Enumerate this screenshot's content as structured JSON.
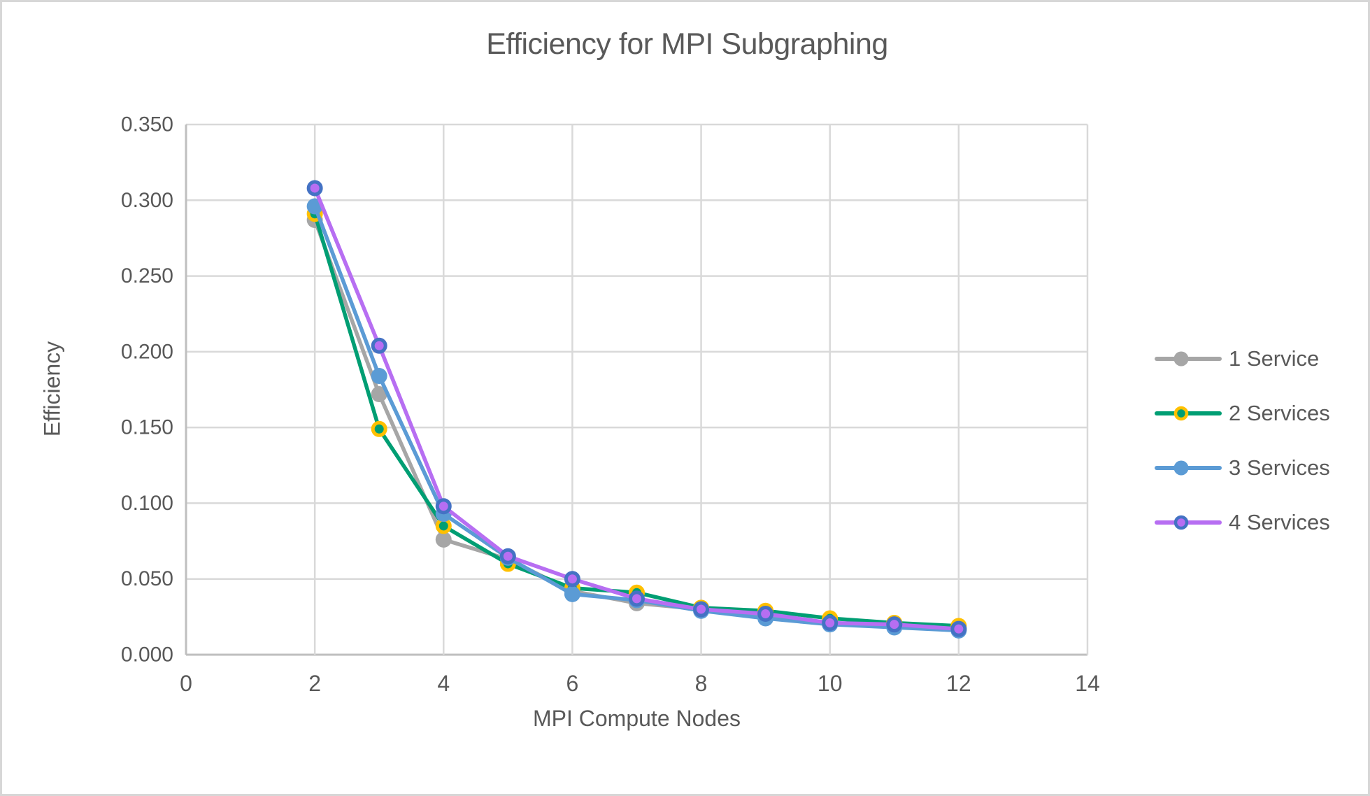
{
  "chart_data": {
    "type": "line",
    "title": "Efficiency for MPI Subgraphing",
    "xlabel": "MPI Compute Nodes",
    "ylabel": "Efficiency",
    "xlim": [
      0,
      14
    ],
    "ylim": [
      0.0,
      0.35
    ],
    "x_ticks": [
      0,
      2,
      4,
      6,
      8,
      10,
      12,
      14
    ],
    "y_ticks": [
      "0.000",
      "0.050",
      "0.100",
      "0.150",
      "0.200",
      "0.250",
      "0.300",
      "0.350"
    ],
    "grid": true,
    "legend_position": "right",
    "x": [
      2,
      3,
      4,
      5,
      6,
      7,
      8,
      9,
      10,
      11,
      12
    ],
    "series": [
      {
        "name": "1 Service",
        "line_color": "#A6A6A6",
        "marker_fill": "#A6A6A6",
        "marker_border": "#A6A6A6",
        "values": [
          0.287,
          0.172,
          0.076,
          0.063,
          0.042,
          0.034,
          0.03,
          0.025,
          0.021,
          0.019,
          0.017
        ]
      },
      {
        "name": "2 Services",
        "line_color": "#009E73",
        "marker_fill": "#009E73",
        "marker_border": "#FFC000",
        "values": [
          0.291,
          0.149,
          0.085,
          0.06,
          0.044,
          0.041,
          0.031,
          0.029,
          0.024,
          0.021,
          0.019
        ]
      },
      {
        "name": "3 Services",
        "line_color": "#5B9BD5",
        "marker_fill": "#5B9BD5",
        "marker_border": "#5B9BD5",
        "values": [
          0.296,
          0.184,
          0.093,
          0.064,
          0.04,
          0.036,
          0.029,
          0.024,
          0.02,
          0.018,
          0.016
        ]
      },
      {
        "name": "4 Services",
        "line_color": "#B76EF2",
        "marker_fill": "#B76EF2",
        "marker_border": "#4472C4",
        "values": [
          0.308,
          0.204,
          0.098,
          0.065,
          0.05,
          0.037,
          0.03,
          0.027,
          0.021,
          0.02,
          0.017
        ]
      }
    ],
    "colors": {
      "gridline": "#D9D9D9",
      "axis": "#BFBFBF",
      "text": "#595959",
      "background": "#FFFFFF"
    }
  }
}
